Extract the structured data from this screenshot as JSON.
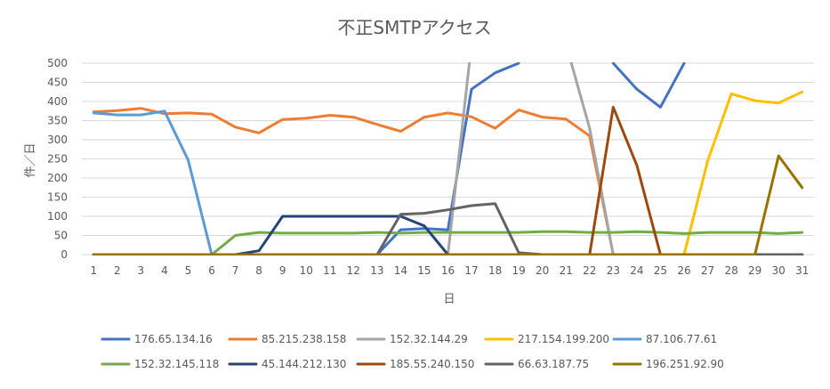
{
  "chart_data": {
    "type": "line",
    "title": "不正SMTPアクセス",
    "xlabel": "日",
    "ylabel": "件／日",
    "ylim": [
      0,
      500
    ],
    "yticks": [
      0,
      50,
      100,
      150,
      200,
      250,
      300,
      350,
      400,
      450,
      500
    ],
    "x": [
      1,
      2,
      3,
      4,
      5,
      6,
      7,
      8,
      9,
      10,
      11,
      12,
      13,
      14,
      15,
      16,
      17,
      18,
      19,
      20,
      21,
      22,
      23,
      24,
      25,
      26,
      27,
      28,
      29,
      30,
      31
    ],
    "grid": true,
    "legend_position": "bottom",
    "series": [
      {
        "name": "176.65.134.16",
        "color": "#4472C4",
        "values": [
          0,
          0,
          0,
          0,
          0,
          0,
          0,
          0,
          0,
          0,
          0,
          0,
          0,
          65,
          68,
          65,
          432,
          475,
          500,
          null,
          null,
          null,
          500,
          432,
          385,
          500,
          null,
          null,
          null,
          null,
          null
        ]
      },
      {
        "name": "85.215.238.158",
        "color": "#ED7D31",
        "values": [
          373,
          376,
          382,
          368,
          370,
          367,
          333,
          318,
          353,
          356,
          364,
          359,
          340,
          322,
          359,
          370,
          360,
          330,
          378,
          359,
          354,
          310,
          0,
          null,
          null,
          null,
          null,
          null,
          null,
          null,
          null
        ]
      },
      {
        "name": "152.32.144.29",
        "color": "#A5A5A5",
        "values": [
          0,
          0,
          0,
          0,
          0,
          0,
          0,
          0,
          0,
          0,
          0,
          0,
          0,
          0,
          0,
          0,
          550,
          null,
          null,
          null,
          550,
          330,
          0,
          0,
          0,
          0,
          0,
          0,
          0,
          0,
          0
        ]
      },
      {
        "name": "217.154.199.200",
        "color": "#FFC000",
        "values": [
          0,
          0,
          0,
          0,
          0,
          0,
          0,
          0,
          0,
          0,
          0,
          0,
          0,
          0,
          0,
          0,
          0,
          0,
          0,
          0,
          0,
          0,
          0,
          0,
          0,
          0,
          245,
          420,
          402,
          396,
          425
        ]
      },
      {
        "name": "87.106.77.61",
        "color": "#5B9BD5",
        "values": [
          370,
          365,
          365,
          375,
          247,
          0,
          null,
          null,
          null,
          null,
          null,
          null,
          null,
          null,
          null,
          null,
          null,
          null,
          null,
          null,
          null,
          null,
          null,
          null,
          null,
          null,
          null,
          null,
          null,
          null,
          null
        ]
      },
      {
        "name": "152.32.145.118",
        "color": "#70AD47",
        "values": [
          0,
          0,
          0,
          0,
          0,
          0,
          50,
          58,
          56,
          56,
          56,
          56,
          58,
          56,
          58,
          58,
          58,
          58,
          58,
          60,
          60,
          58,
          58,
          60,
          58,
          55,
          58,
          58,
          58,
          55,
          58
        ]
      },
      {
        "name": "45.144.212.130",
        "color": "#264478",
        "values": [
          0,
          0,
          0,
          0,
          0,
          0,
          0,
          10,
          100,
          100,
          100,
          100,
          100,
          100,
          75,
          0,
          0,
          0,
          0,
          0,
          0,
          0,
          0,
          0,
          0,
          0,
          0,
          0,
          0,
          0,
          0
        ]
      },
      {
        "name": "185.55.240.150",
        "color": "#9E480E",
        "values": [
          0,
          0,
          0,
          0,
          0,
          0,
          0,
          0,
          0,
          0,
          0,
          0,
          0,
          0,
          0,
          0,
          0,
          0,
          0,
          0,
          0,
          0,
          385,
          233,
          0,
          0,
          0,
          0,
          0,
          0,
          0
        ]
      },
      {
        "name": "66.63.187.75",
        "color": "#636363",
        "values": [
          0,
          0,
          0,
          0,
          0,
          0,
          0,
          0,
          0,
          0,
          0,
          0,
          0,
          105,
          108,
          117,
          128,
          133,
          5,
          0,
          0,
          0,
          0,
          0,
          0,
          0,
          0,
          0,
          0,
          0,
          0
        ]
      },
      {
        "name": "196.251.92.90",
        "color": "#997300",
        "values": [
          0,
          0,
          0,
          0,
          0,
          0,
          0,
          0,
          0,
          0,
          0,
          0,
          0,
          0,
          0,
          0,
          0,
          0,
          0,
          0,
          0,
          0,
          0,
          0,
          0,
          0,
          0,
          0,
          0,
          258,
          175
        ]
      }
    ]
  }
}
